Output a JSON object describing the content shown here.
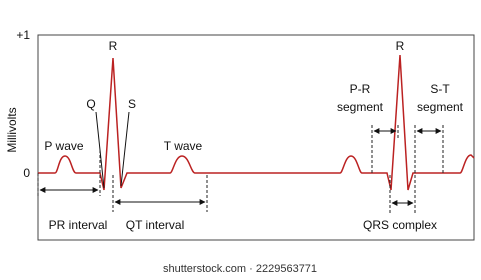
{
  "axis": {
    "top": "+1",
    "zero": "0",
    "label": "Millivolts"
  },
  "waves": {
    "r_left": "R",
    "q": "Q",
    "s": "S",
    "p_wave": "P wave",
    "t_wave": "T wave",
    "r_right": "R"
  },
  "intervals": {
    "pr_interval": "PR interval",
    "qt_interval": "QT interval",
    "qrs_complex": "QRS complex",
    "pr_segment": [
      "P-R",
      "segment"
    ],
    "st_segment": [
      "S-T",
      "segment"
    ]
  },
  "footer": {
    "watermark": "shutterstock.com · 2229563771"
  }
}
